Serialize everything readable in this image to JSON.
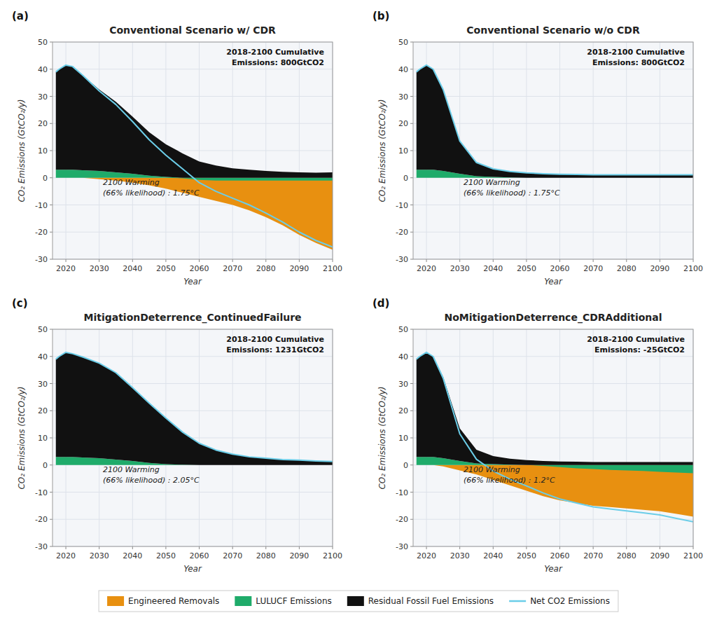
{
  "chart_data": [
    {
      "type": "area",
      "title": "Conventional Scenario w/ CDR",
      "x_label": "Year",
      "y_label": "CO₂ Emissions (GtCO₂/y)",
      "annotations": [
        "(a)",
        "2018-2100 Cumulative\nEmissions: 800GtCO2",
        "2100 Warming\n(66% likelihood) : 1.75°C"
      ],
      "x": [
        2017,
        2018,
        2020,
        2022,
        2025,
        2030,
        2035,
        2040,
        2045,
        2050,
        2055,
        2060,
        2065,
        2070,
        2075,
        2080,
        2085,
        2090,
        2095,
        2100
      ],
      "series": [
        {
          "name": "Engineered Removals",
          "color": "#E89010",
          "values": [
            0,
            0,
            0,
            0,
            0,
            -0.5,
            -1.0,
            -1.8,
            -2.8,
            -4.0,
            -5.5,
            -7.0,
            -8.5,
            -10.0,
            -12.0,
            -14.5,
            -17.5,
            -21.0,
            -24.0,
            -26.5
          ]
        },
        {
          "name": "LULUCF Emissions",
          "color": "#1FAB6A",
          "values": [
            3.0,
            3.0,
            3.0,
            3.0,
            2.8,
            2.5,
            2.0,
            1.5,
            0.8,
            0.3,
            -0.2,
            -0.8,
            -1.0,
            -1.0,
            -1.0,
            -1.0,
            -1.0,
            -1.0,
            -1.0,
            -1.0
          ]
        },
        {
          "name": "Residual Fossil Fuel Emissions",
          "color": "#111111",
          "values": [
            36,
            37,
            38.5,
            38,
            35,
            30,
            26,
            21,
            16,
            12,
            9,
            6,
            4.5,
            3.5,
            3.0,
            2.5,
            2.2,
            2.0,
            1.9,
            2.0
          ]
        },
        {
          "name": "Net CO2 Emissions",
          "type": "line",
          "color": "#6BCDE8",
          "values": [
            39,
            40,
            41.5,
            41,
            37.8,
            32,
            27,
            20.7,
            14,
            8.3,
            3.3,
            -1.8,
            -5.0,
            -7.5,
            -10.0,
            -13.0,
            -16.3,
            -20.0,
            -23.1,
            -25.5
          ]
        }
      ],
      "stacked": true,
      "grid": true,
      "legend": "bottom",
      "xlim": [
        2016,
        2100
      ],
      "xticks": [
        2020,
        2030,
        2040,
        2050,
        2060,
        2070,
        2080,
        2090,
        2100
      ],
      "ylim": [
        -30,
        50
      ],
      "yticks": [
        -30,
        -20,
        -10,
        0,
        10,
        20,
        30,
        40,
        50
      ]
    },
    {
      "type": "area",
      "title": "Conventional Scenario w/o CDR",
      "x_label": "Year",
      "y_label": "CO₂ Emissions (GtCO₂/y)",
      "annotations": [
        "(b)",
        "2018-2100 Cumulative\nEmissions: 800GtCO2",
        "2100 Warming\n(66% likelihood) : 1.75°C"
      ],
      "x": [
        2017,
        2018,
        2020,
        2022,
        2025,
        2030,
        2035,
        2040,
        2045,
        2050,
        2055,
        2060,
        2065,
        2070,
        2075,
        2080,
        2085,
        2090,
        2095,
        2100
      ],
      "series": [
        {
          "name": "Engineered Removals",
          "color": "#E89010",
          "values": [
            0,
            0,
            0,
            0,
            0,
            0,
            0,
            0,
            0,
            0,
            0,
            0,
            0,
            0,
            0,
            0,
            0,
            0,
            0,
            0
          ]
        },
        {
          "name": "LULUCF Emissions",
          "color": "#1FAB6A",
          "values": [
            3.0,
            3.0,
            3.0,
            3.0,
            2.5,
            1.5,
            0.6,
            0.3,
            0.1,
            0.0,
            0.0,
            0.0,
            0.0,
            0.0,
            0.0,
            0.0,
            0.0,
            0.0,
            0.0,
            0.0
          ]
        },
        {
          "name": "Residual Fossil Fuel Emissions",
          "color": "#111111",
          "values": [
            36,
            37,
            38.5,
            37,
            30,
            12,
            5,
            3,
            2.2,
            1.8,
            1.5,
            1.3,
            1.2,
            1.1,
            1.1,
            1.1,
            1.1,
            1.1,
            1.1,
            1.1
          ]
        },
        {
          "name": "Net CO2 Emissions",
          "type": "line",
          "color": "#6BCDE8",
          "values": [
            39,
            40,
            41.5,
            40,
            32.5,
            13.5,
            5.6,
            3.3,
            2.3,
            1.8,
            1.5,
            1.3,
            1.2,
            1.1,
            1.1,
            1.1,
            1.1,
            1.1,
            1.1,
            1.1
          ]
        }
      ],
      "stacked": true,
      "grid": true,
      "xlim": [
        2016,
        2100
      ],
      "xticks": [
        2020,
        2030,
        2040,
        2050,
        2060,
        2070,
        2080,
        2090,
        2100
      ],
      "ylim": [
        -30,
        50
      ],
      "yticks": [
        -30,
        -20,
        -10,
        0,
        10,
        20,
        30,
        40,
        50
      ]
    },
    {
      "type": "area",
      "title": "MitigationDeterrence_ContinuedFailure",
      "x_label": "Year",
      "y_label": "CO₂ Emissions (GtCO₂/y)",
      "annotations": [
        "(c)",
        "2018-2100 Cumulative\nEmissions: 1231GtCO2",
        "2100 Warming\n(66% likelihood) : 2.05°C"
      ],
      "x": [
        2017,
        2018,
        2020,
        2022,
        2025,
        2030,
        2035,
        2040,
        2045,
        2050,
        2055,
        2060,
        2065,
        2070,
        2075,
        2080,
        2085,
        2090,
        2095,
        2100
      ],
      "series": [
        {
          "name": "Engineered Removals",
          "color": "#E89010",
          "values": [
            0,
            0,
            0,
            0,
            0,
            0,
            0,
            0,
            0,
            0,
            0,
            0,
            0,
            0,
            0,
            0,
            0,
            0,
            0,
            0
          ]
        },
        {
          "name": "LULUCF Emissions",
          "color": "#1FAB6A",
          "values": [
            3.0,
            3.0,
            3.0,
            3.0,
            2.8,
            2.5,
            2.0,
            1.5,
            0.8,
            0.3,
            0.1,
            0.0,
            0.0,
            0.0,
            0.0,
            0.0,
            0.0,
            0.0,
            0.0,
            0.0
          ]
        },
        {
          "name": "Residual Fossil Fuel Emissions",
          "color": "#111111",
          "values": [
            36,
            37,
            38.5,
            38,
            37,
            35,
            32,
            27,
            22,
            17,
            12,
            8,
            5.5,
            4,
            3,
            2.5,
            2.0,
            1.8,
            1.5,
            1.3
          ]
        },
        {
          "name": "Net CO2 Emissions",
          "type": "line",
          "color": "#6BCDE8",
          "values": [
            39,
            40,
            41.5,
            41,
            39.8,
            37.5,
            34,
            28.5,
            22.8,
            17.3,
            12.1,
            8.0,
            5.5,
            4.0,
            3.0,
            2.5,
            2.0,
            1.8,
            1.5,
            1.3
          ]
        }
      ],
      "stacked": true,
      "grid": true,
      "xlim": [
        2016,
        2100
      ],
      "xticks": [
        2020,
        2030,
        2040,
        2050,
        2060,
        2070,
        2080,
        2090,
        2100
      ],
      "ylim": [
        -30,
        50
      ],
      "yticks": [
        -30,
        -20,
        -10,
        0,
        10,
        20,
        30,
        40,
        50
      ]
    },
    {
      "type": "area",
      "title": "NoMitigationDeterrence_CDRAdditional",
      "x_label": "Year",
      "y_label": "CO₂ Emissions (GtCO₂/y)",
      "annotations": [
        "(d)",
        "2018-2100 Cumulative\nEmissions: -25GtCO2",
        "2100 Warming\n(66% likelihood) : 1.2°C"
      ],
      "x": [
        2017,
        2018,
        2020,
        2022,
        2025,
        2030,
        2035,
        2040,
        2045,
        2050,
        2055,
        2060,
        2065,
        2070,
        2075,
        2080,
        2085,
        2090,
        2095,
        2100
      ],
      "series": [
        {
          "name": "Engineered Removals",
          "color": "#E89010",
          "values": [
            0,
            0,
            0,
            0,
            -0.5,
            -2.0,
            -3.5,
            -5.5,
            -7.5,
            -9.5,
            -11.5,
            -13.0,
            -14.0,
            -15.0,
            -15.5,
            -16.0,
            -16.5,
            -17.0,
            -18.0,
            -19.0
          ]
        },
        {
          "name": "LULUCF Emissions",
          "color": "#1FAB6A",
          "values": [
            3.0,
            3.0,
            3.0,
            3.0,
            2.5,
            1.5,
            0.6,
            0.3,
            0.1,
            0.0,
            -0.3,
            -0.8,
            -1.2,
            -1.5,
            -1.8,
            -2.0,
            -2.2,
            -2.5,
            -2.8,
            -3.0
          ]
        },
        {
          "name": "Residual Fossil Fuel Emissions",
          "color": "#111111",
          "values": [
            36,
            37,
            38.5,
            37,
            30,
            12,
            5,
            3,
            2.2,
            1.8,
            1.5,
            1.3,
            1.2,
            1.1,
            1.1,
            1.1,
            1.1,
            1.1,
            1.1,
            1.1
          ]
        },
        {
          "name": "Net CO2 Emissions",
          "type": "line",
          "color": "#6BCDE8",
          "values": [
            39,
            40,
            41.5,
            40,
            32,
            11.5,
            2.1,
            -2.2,
            -5.2,
            -7.7,
            -10.3,
            -12.5,
            -14.0,
            -15.4,
            -16.2,
            -16.9,
            -17.6,
            -18.4,
            -19.7,
            -20.9
          ]
        }
      ],
      "stacked": true,
      "grid": true,
      "xlim": [
        2016,
        2100
      ],
      "xticks": [
        2020,
        2030,
        2040,
        2050,
        2060,
        2070,
        2080,
        2090,
        2100
      ],
      "ylim": [
        -30,
        50
      ],
      "yticks": [
        -30,
        -20,
        -10,
        0,
        10,
        20,
        30,
        40,
        50
      ]
    }
  ]
}
